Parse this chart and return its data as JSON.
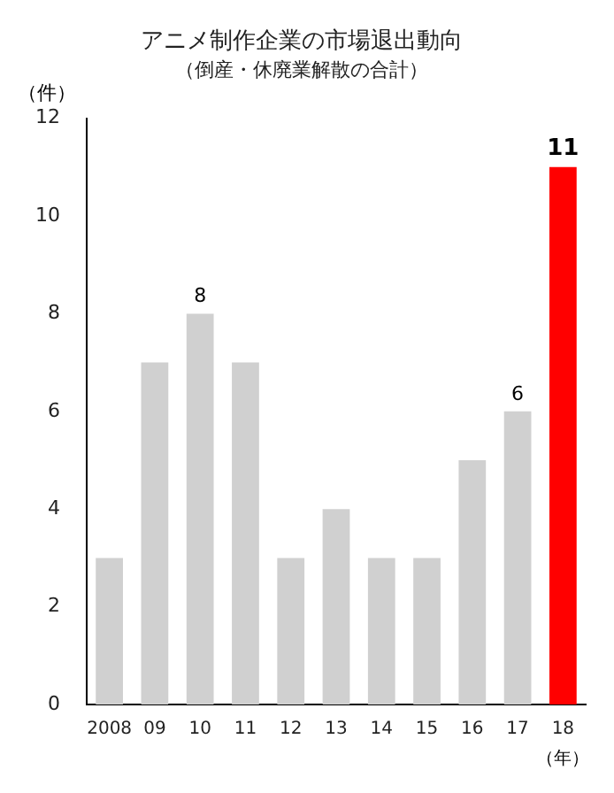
{
  "chart_data": {
    "type": "bar",
    "title": "アニメ制作企業の市場退出動向",
    "subtitle": "（倒産・休廃業解散の合計）",
    "ylabel": "（件）",
    "xlabel": "（年）",
    "categories": [
      "2008",
      "09",
      "10",
      "11",
      "12",
      "13",
      "14",
      "15",
      "16",
      "17",
      "18"
    ],
    "values": [
      3,
      7,
      8,
      7,
      3,
      4,
      3,
      3,
      5,
      6,
      11
    ],
    "colors": [
      "#d0d0d0",
      "#d0d0d0",
      "#d0d0d0",
      "#d0d0d0",
      "#d0d0d0",
      "#d0d0d0",
      "#d0d0d0",
      "#d0d0d0",
      "#d0d0d0",
      "#d0d0d0",
      "#ff0000"
    ],
    "value_labels": [
      null,
      null,
      "8",
      null,
      null,
      null,
      null,
      null,
      null,
      "6",
      "11"
    ],
    "ylim": [
      0,
      12
    ],
    "yticks": [
      0,
      2,
      4,
      6,
      8,
      10,
      12
    ],
    "grid": false,
    "legend": false
  }
}
